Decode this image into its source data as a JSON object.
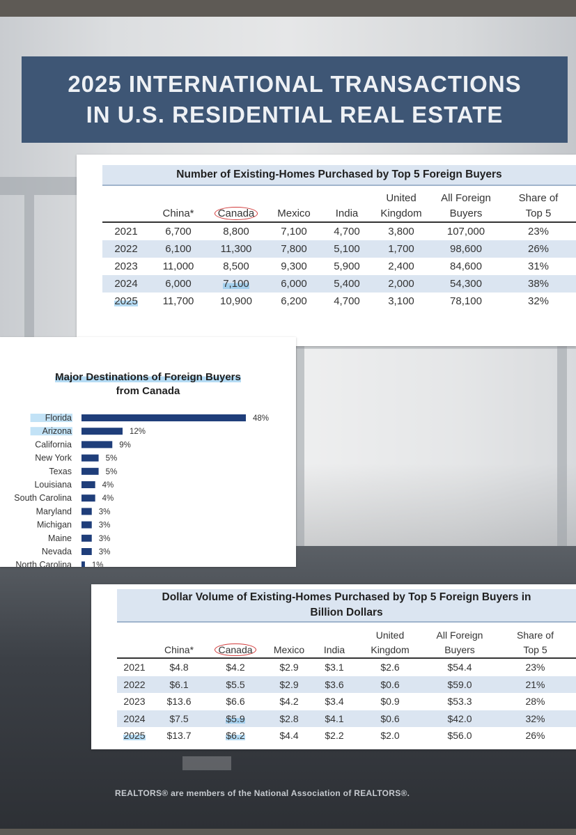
{
  "banner": {
    "line1": "2025 INTERNATIONAL TRANSACTIONS",
    "line2": "IN U.S. RESIDENTIAL REAL ESTATE"
  },
  "footer": "REALTORS® are members of the National Association of REALTORS®.",
  "chart_data": [
    {
      "type": "table",
      "title": "Number of Existing-Homes Purchased by Top 5 Foreign Buyers",
      "columns": [
        {
          "l1": "",
          "l2": ""
        },
        {
          "l1": "",
          "l2": "China*"
        },
        {
          "l1": "",
          "l2": "Canada"
        },
        {
          "l1": "",
          "l2": "Mexico"
        },
        {
          "l1": "",
          "l2": "India"
        },
        {
          "l1": "United",
          "l2": "Kingdom"
        },
        {
          "l1": "All Foreign",
          "l2": "Buyers"
        },
        {
          "l1": "Share of",
          "l2": "Top 5"
        }
      ],
      "rows": [
        [
          "2021",
          "6,700",
          "8,800",
          "7,100",
          "4,700",
          "3,800",
          "107,000",
          "23%"
        ],
        [
          "2022",
          "6,100",
          "11,300",
          "7,800",
          "5,100",
          "1,700",
          "98,600",
          "26%"
        ],
        [
          "2023",
          "11,000",
          "8,500",
          "9,300",
          "5,900",
          "2,400",
          "84,600",
          "31%"
        ],
        [
          "2024",
          "6,000",
          "7,100",
          "6,000",
          "5,400",
          "2,000",
          "54,300",
          "38%"
        ],
        [
          "2025",
          "11,700",
          "10,900",
          "6,200",
          "4,700",
          "3,100",
          "78,100",
          "32%"
        ]
      ]
    },
    {
      "type": "bar",
      "orientation": "horizontal",
      "title_lines": [
        "Major Destinations of Foreign Buyers",
        "from Canada"
      ],
      "categories": [
        "Florida",
        "Arizona",
        "California",
        "New York",
        "Texas",
        "Louisiana",
        "South Carolina",
        "Maryland",
        "Michigan",
        "Maine",
        "Nevada",
        "North Carolina"
      ],
      "values": [
        48,
        12,
        9,
        5,
        5,
        4,
        4,
        3,
        3,
        3,
        3,
        1
      ],
      "labels": [
        "48%",
        "12%",
        "9%",
        "5%",
        "5%",
        "4%",
        "4%",
        "3%",
        "3%",
        "3%",
        "3%",
        "1%"
      ],
      "unit": "%",
      "xlim": [
        0,
        48
      ],
      "bar_color": "#1f3e7a",
      "highlighted": [
        "Florida",
        "Arizona"
      ]
    },
    {
      "type": "table",
      "title_lines": [
        "Dollar Volume of Existing-Homes Purchased by Top 5 Foreign Buyers in",
        "Billion Dollars"
      ],
      "columns": [
        {
          "l1": "",
          "l2": ""
        },
        {
          "l1": "",
          "l2": "China*"
        },
        {
          "l1": "",
          "l2": "Canada"
        },
        {
          "l1": "",
          "l2": "Mexico"
        },
        {
          "l1": "",
          "l2": "India"
        },
        {
          "l1": "United",
          "l2": "Kingdom"
        },
        {
          "l1": "All Foreign",
          "l2": "Buyers"
        },
        {
          "l1": "Share of",
          "l2": "Top 5"
        }
      ],
      "rows": [
        [
          "2021",
          "$4.8",
          "$4.2",
          "$2.9",
          "$3.1",
          "$2.6",
          "$54.4",
          "23%"
        ],
        [
          "2022",
          "$6.1",
          "$5.5",
          "$2.9",
          "$3.6",
          "$0.6",
          "$59.0",
          "21%"
        ],
        [
          "2023",
          "$13.6",
          "$6.6",
          "$4.2",
          "$3.4",
          "$0.9",
          "$53.3",
          "28%"
        ],
        [
          "2024",
          "$7.5",
          "$5.9",
          "$2.8",
          "$4.1",
          "$0.6",
          "$42.0",
          "32%"
        ],
        [
          "2025",
          "$13.7",
          "$6.2",
          "$4.4",
          "$2.2",
          "$2.0",
          "$56.0",
          "26%"
        ]
      ]
    }
  ]
}
